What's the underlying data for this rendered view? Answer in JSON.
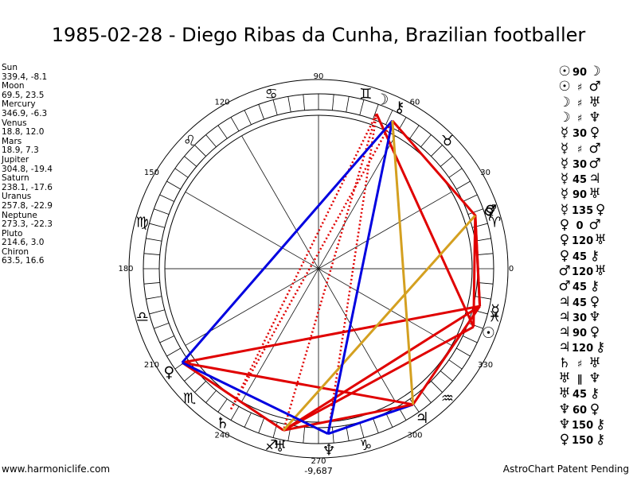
{
  "title": "1985-02-28 - Diego Ribas da Cunha, Brazilian footballer",
  "planets": [
    {
      "name": "Sun",
      "coords": "339.4, -8.1",
      "glyph": "☉",
      "lon": 339.4
    },
    {
      "name": "Moon",
      "coords": "69.5, 23.5",
      "glyph": "☽",
      "lon": 69.5
    },
    {
      "name": "Mercury",
      "coords": "346.9, -6.3",
      "glyph": "☿",
      "lon": 346.9
    },
    {
      "name": "Venus",
      "coords": "18.8, 12.0",
      "glyph": "♀",
      "lon": 18.8
    },
    {
      "name": "Mars",
      "coords": "18.9, 7.3",
      "glyph": "♂",
      "lon": 18.9
    },
    {
      "name": "Jupiter",
      "coords": "304.8, -19.4",
      "glyph": "♃",
      "lon": 304.8
    },
    {
      "name": "Saturn",
      "coords": "238.1, -17.6",
      "glyph": "♄",
      "lon": 238.1
    },
    {
      "name": "Uranus",
      "coords": "257.8, -22.9",
      "glyph": "♅",
      "lon": 257.8
    },
    {
      "name": "Neptune",
      "coords": "273.3, -22.3",
      "glyph": "♆",
      "lon": 273.3
    },
    {
      "name": "Pluto",
      "coords": "214.6, 3.0",
      "glyph": "♀",
      "lon": 214.6
    },
    {
      "name": "Chiron",
      "coords": "63.5, 16.6",
      "glyph": "⚷",
      "lon": 63.5
    }
  ],
  "zodiac_signs": [
    {
      "glyph": "♓",
      "lon": 345
    },
    {
      "glyph": "♈",
      "lon": 15
    },
    {
      "glyph": "♉",
      "lon": 45
    },
    {
      "glyph": "♊",
      "lon": 75
    },
    {
      "glyph": "♋",
      "lon": 105
    },
    {
      "glyph": "♌",
      "lon": 135
    },
    {
      "glyph": "♍",
      "lon": 165
    },
    {
      "glyph": "♎",
      "lon": 195
    },
    {
      "glyph": "♏",
      "lon": 225
    },
    {
      "glyph": "♐",
      "lon": 255
    },
    {
      "glyph": "♑",
      "lon": 285
    },
    {
      "glyph": "♒",
      "lon": 315
    }
  ],
  "degree_labels": [
    "0",
    "30",
    "60",
    "90",
    "120",
    "150",
    "180",
    "210",
    "240",
    "270",
    "300",
    "330"
  ],
  "axis_extra_label": "-9,687",
  "aspects": [
    {
      "a": "Sun",
      "b": "Moon",
      "color": "#e00000",
      "style": "solid"
    },
    {
      "a": "Sun",
      "b": "Uranus",
      "color": "#e00000",
      "style": "solid"
    },
    {
      "a": "Sun",
      "b": "Mars",
      "color": "#e00000",
      "style": "solid"
    },
    {
      "a": "Moon",
      "b": "Uranus",
      "color": "#e00000",
      "style": "dotted"
    },
    {
      "a": "Moon",
      "b": "Neptune",
      "color": "#e00000",
      "style": "dotted"
    },
    {
      "a": "Mercury",
      "b": "Venus",
      "color": "#e00000",
      "style": "solid"
    },
    {
      "a": "Mercury",
      "b": "Mars",
      "color": "#e00000",
      "style": "solid"
    },
    {
      "a": "Mercury",
      "b": "Jupiter",
      "color": "#e00000",
      "style": "solid"
    },
    {
      "a": "Mercury",
      "b": "Uranus",
      "color": "#e00000",
      "style": "solid"
    },
    {
      "a": "Mercury",
      "b": "Pluto",
      "color": "#e00000",
      "style": "solid"
    },
    {
      "a": "Venus",
      "b": "Chiron",
      "color": "#e00000",
      "style": "solid"
    },
    {
      "a": "Jupiter",
      "b": "Pluto",
      "color": "#e00000",
      "style": "solid"
    },
    {
      "a": "Jupiter",
      "b": "Neptune",
      "color": "#0000e0",
      "style": "solid"
    },
    {
      "a": "Jupiter",
      "b": "Uranus",
      "color": "#e00000",
      "style": "solid"
    },
    {
      "a": "Saturn",
      "b": "Moon",
      "color": "#e00000",
      "style": "dotted"
    },
    {
      "a": "Saturn",
      "b": "Chiron",
      "color": "#e00000",
      "style": "dotted"
    },
    {
      "a": "Uranus",
      "b": "Pluto",
      "color": "#e00000",
      "style": "solid"
    },
    {
      "a": "Uranus",
      "b": "Venus",
      "color": "#d4a020",
      "style": "solid"
    },
    {
      "a": "Neptune",
      "b": "Chiron",
      "color": "#0000e0",
      "style": "solid"
    },
    {
      "a": "Neptune",
      "b": "Pluto",
      "color": "#0000e0",
      "style": "solid"
    },
    {
      "a": "Pluto",
      "b": "Chiron",
      "color": "#0000e0",
      "style": "solid"
    },
    {
      "a": "Jupiter",
      "b": "Chiron",
      "color": "#d4a020",
      "style": "solid"
    },
    {
      "a": "Venus",
      "b": "Mars",
      "color": "#e00000",
      "style": "solid"
    }
  ],
  "aspect_list": [
    {
      "g1": "☉",
      "aspect": "90",
      "g2": "☽"
    },
    {
      "g1": "☉",
      "aspect": "♯",
      "g2": "♂"
    },
    {
      "g1": "☽",
      "aspect": "♯",
      "g2": "♅"
    },
    {
      "g1": "☽",
      "aspect": "♯",
      "g2": "♆"
    },
    {
      "g1": "☿",
      "aspect": "30",
      "g2": "♀"
    },
    {
      "g1": "☿",
      "aspect": "♯",
      "g2": "♂"
    },
    {
      "g1": "☿",
      "aspect": "30",
      "g2": "♂"
    },
    {
      "g1": "☿",
      "aspect": "45",
      "g2": "♃"
    },
    {
      "g1": "☿",
      "aspect": "90",
      "g2": "♅"
    },
    {
      "g1": "☿",
      "aspect": "135",
      "g2": "♀"
    },
    {
      "g1": "♀",
      "aspect": "0",
      "g2": "♂"
    },
    {
      "g1": "♀",
      "aspect": "120",
      "g2": "♅"
    },
    {
      "g1": "♀",
      "aspect": "45",
      "g2": "⚷"
    },
    {
      "g1": "♂",
      "aspect": "120",
      "g2": "♅"
    },
    {
      "g1": "♂",
      "aspect": "45",
      "g2": "⚷"
    },
    {
      "g1": "♃",
      "aspect": "45",
      "g2": "♀"
    },
    {
      "g1": "♃",
      "aspect": "30",
      "g2": "♆"
    },
    {
      "g1": "♃",
      "aspect": "90",
      "g2": "♀"
    },
    {
      "g1": "♃",
      "aspect": "120",
      "g2": "⚷"
    },
    {
      "g1": "♄",
      "aspect": "♯",
      "g2": "♅"
    },
    {
      "g1": "♅",
      "aspect": "∥",
      "g2": "♆"
    },
    {
      "g1": "♅",
      "aspect": "45",
      "g2": "⚷"
    },
    {
      "g1": "♆",
      "aspect": "60",
      "g2": "♀"
    },
    {
      "g1": "♆",
      "aspect": "150",
      "g2": "⚷"
    },
    {
      "g1": "♀",
      "aspect": "150",
      "g2": "⚷"
    }
  ],
  "footer_left": "www.harmoniclife.com",
  "footer_right": "AstroChart Patent Pending"
}
